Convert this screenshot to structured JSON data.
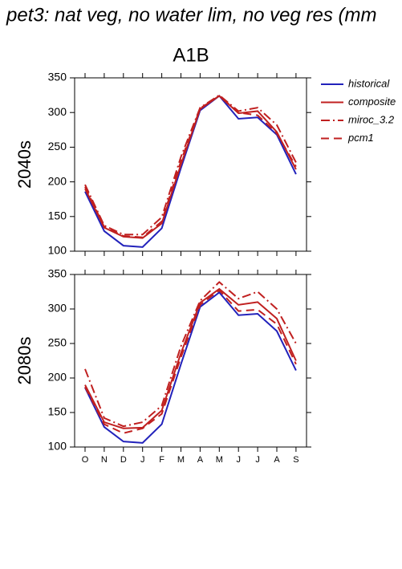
{
  "title": "pet3: nat veg, no water lim, no veg res (mm",
  "chart_data": [
    {
      "type": "line",
      "title": "A1B",
      "ylabel": "2040s",
      "legend": "right",
      "categories": [
        null,
        null,
        null,
        null,
        null,
        null,
        null,
        null,
        null,
        null,
        null,
        null
      ],
      "ylim": [
        100,
        350
      ],
      "yticks": [
        100,
        150,
        200,
        250,
        300,
        350
      ],
      "series": [
        {
          "name": "historical",
          "color": "#2222bb",
          "dash": "solid",
          "values": [
            186,
            129,
            108,
            106,
            133,
            220,
            303,
            324,
            291,
            293,
            268,
            211
          ]
        },
        {
          "name": "composite",
          "color": "#c02020",
          "dash": "solid",
          "values": [
            190,
            134,
            121,
            119,
            140,
            225,
            305,
            324,
            299,
            302,
            272,
            218
          ]
        },
        {
          "name": "miroc_3.2",
          "color": "#c02020",
          "dash": "dashdot",
          "values": [
            196,
            137,
            124,
            124,
            149,
            236,
            307,
            325,
            302,
            307,
            282,
            228
          ]
        },
        {
          "name": "pcm1",
          "color": "#c02020",
          "dash": "dash",
          "values": [
            193,
            135,
            122,
            120,
            143,
            230,
            306,
            324,
            300,
            296,
            270,
            222
          ]
        }
      ]
    },
    {
      "type": "line",
      "ylabel": "2080s",
      "categories": [
        "O",
        "N",
        "D",
        "J",
        "F",
        "M",
        "A",
        "M",
        "J",
        "J",
        "A",
        "S"
      ],
      "ylim": [
        100,
        350
      ],
      "yticks": [
        100,
        150,
        200,
        250,
        300,
        350
      ],
      "series": [
        {
          "color": "#2222bb",
          "dash": "solid",
          "values": [
            186,
            129,
            108,
            106,
            133,
            220,
            303,
            324,
            291,
            293,
            268,
            211
          ]
        },
        {
          "color": "#c02020",
          "dash": "solid",
          "values": [
            190,
            136,
            127,
            128,
            153,
            236,
            309,
            329,
            306,
            310,
            286,
            225
          ]
        },
        {
          "color": "#c02020",
          "dash": "dashdot",
          "values": [
            213,
            142,
            130,
            136,
            160,
            246,
            312,
            339,
            315,
            325,
            300,
            250
          ]
        },
        {
          "color": "#c02020",
          "dash": "dash",
          "values": [
            187,
            133,
            120,
            127,
            148,
            230,
            306,
            327,
            297,
            299,
            278,
            220
          ]
        }
      ]
    }
  ]
}
